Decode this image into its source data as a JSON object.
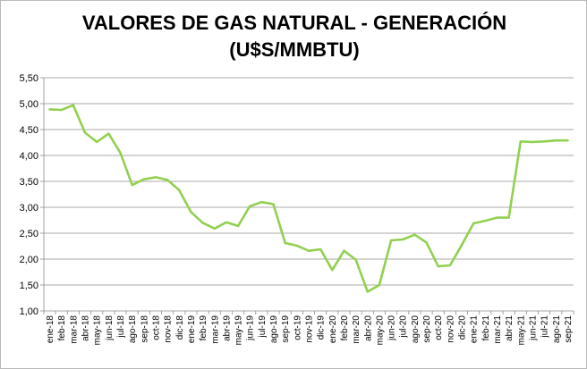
{
  "chart_data": {
    "type": "line",
    "title_line1": "VALORES DE GAS NATURAL - GENERACIÓN",
    "title_line2": "(U$S/MMBTU)",
    "xlabel": "",
    "ylabel": "",
    "ylim": [
      1.0,
      5.5
    ],
    "y_ticks": [
      "1,00",
      "1,50",
      "2,00",
      "2,50",
      "3,00",
      "3,50",
      "4,00",
      "4,50",
      "5,00",
      "5,50"
    ],
    "grid": "horizontal",
    "legend": "none",
    "line_color": "#92d050",
    "x_tick_labels": [
      "ene-18",
      "feb-18",
      "mar-18",
      "abr-18",
      "may-18",
      "jun-18",
      "jul-18",
      "ago-18",
      "sep-18",
      "oct-18",
      "nov-18",
      "dic-18",
      "ene-19",
      "feb-19",
      "mar-19",
      "abr-19",
      "may-19",
      "jun-19",
      "jul-19",
      "ago-19",
      "sep-19",
      "oct-19",
      "nov-19",
      "dic-19",
      "ene-20",
      "feb-20",
      "mar-20",
      "abr-20",
      "may-20",
      "jun-20",
      "jul-20",
      "ago-20",
      "sep-20",
      "oct-20",
      "nov-20",
      "dic-20",
      "ene-21",
      "feb-21",
      "mar-21",
      "abr-21",
      "may-21",
      "jun-21",
      "jul-21",
      "ago-21",
      "sep-21"
    ],
    "series": [
      {
        "values": [
          4.89,
          4.88,
          4.97,
          4.44,
          4.26,
          4.42,
          4.05,
          3.43,
          3.54,
          3.58,
          3.53,
          3.33,
          2.91,
          2.7,
          2.59,
          2.71,
          2.64,
          3.02,
          3.1,
          3.06,
          2.31,
          2.26,
          2.16,
          2.19,
          1.79,
          2.16,
          1.99,
          1.37,
          1.5,
          2.36,
          2.38,
          2.47,
          2.32,
          1.86,
          1.88,
          2.27,
          2.69,
          2.74,
          2.8,
          2.8,
          4.27,
          4.26,
          4.27,
          4.29,
          4.29
        ]
      }
    ]
  }
}
